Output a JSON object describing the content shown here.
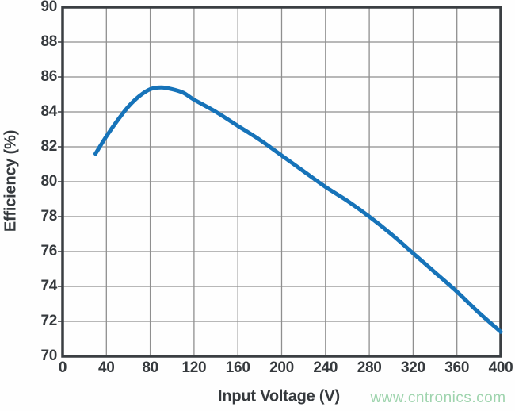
{
  "watermark": {
    "text": "www.cntronics.com",
    "color": "#9fd4ae"
  },
  "chart_data": {
    "type": "line",
    "title": "",
    "xlabel": "Input Voltage (V)",
    "ylabel": "Efficiency (%)",
    "xlim": [
      0,
      400
    ],
    "ylim": [
      70,
      90
    ],
    "x_ticks": [
      0,
      40,
      80,
      120,
      160,
      200,
      240,
      280,
      320,
      360,
      400
    ],
    "y_ticks": [
      70,
      72,
      74,
      76,
      78,
      80,
      82,
      84,
      86,
      88,
      90
    ],
    "grid": true,
    "legend_position": "none",
    "series": [
      {
        "name": "Efficiency",
        "color": "#1673b9",
        "line_width": 5,
        "x": [
          30,
          40,
          50,
          60,
          70,
          80,
          90,
          100,
          110,
          120,
          140,
          160,
          180,
          200,
          220,
          240,
          260,
          280,
          300,
          320,
          340,
          360,
          380,
          400
        ],
        "y": [
          81.6,
          82.6,
          83.5,
          84.3,
          84.9,
          85.3,
          85.4,
          85.3,
          85.1,
          84.7,
          84.0,
          83.2,
          82.4,
          81.5,
          80.6,
          79.7,
          78.9,
          78.0,
          77.0,
          75.9,
          74.8,
          73.7,
          72.5,
          71.4
        ]
      }
    ],
    "colors": {
      "grid": "#8f8f8f",
      "frame": "#3a3e42",
      "text": "#35393d",
      "background": "#fefefe"
    }
  }
}
